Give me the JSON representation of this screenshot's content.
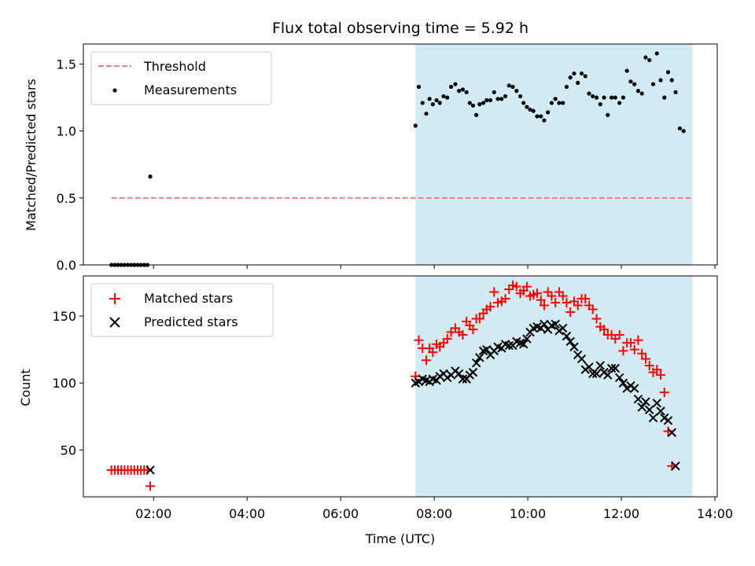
{
  "chart_data": [
    {
      "type": "scatter",
      "title": "Flux total observing time = 5.92 h",
      "xlabel": "",
      "ylabel": "Matched/Predicted stars",
      "x_unit": "hours UTC",
      "xlim": [
        0.5,
        14.05
      ],
      "ylim": [
        0,
        1.65
      ],
      "yticks": [
        0.0,
        0.5,
        1.0,
        1.5
      ],
      "ytick_labels": [
        "0.0",
        "0.5",
        "1.0",
        "1.5"
      ],
      "shaded_region": {
        "x": [
          7.6,
          13.52
        ],
        "color": "#add8e6"
      },
      "threshold": {
        "name": "Threshold",
        "y": 0.5,
        "x": [
          1.1,
          13.52
        ],
        "color": "#f08080",
        "style": "dashed"
      },
      "legend_position": "upper-left",
      "series": [
        {
          "name": "Measurements",
          "color": "#000000",
          "marker": "dot",
          "points": [
            [
              1.1,
              0
            ],
            [
              1.17,
              0
            ],
            [
              1.24,
              0
            ],
            [
              1.31,
              0
            ],
            [
              1.38,
              0
            ],
            [
              1.45,
              0
            ],
            [
              1.52,
              0
            ],
            [
              1.59,
              0
            ],
            [
              1.66,
              0
            ],
            [
              1.73,
              0
            ],
            [
              1.8,
              0
            ],
            [
              1.87,
              0
            ],
            [
              1.93,
              0.66
            ],
            [
              7.6,
              1.04
            ],
            [
              7.67,
              1.33
            ],
            [
              7.75,
              1.21
            ],
            [
              7.83,
              1.13
            ],
            [
              7.9,
              1.24
            ],
            [
              7.97,
              1.2
            ],
            [
              8.05,
              1.23
            ],
            [
              8.12,
              1.21
            ],
            [
              8.2,
              1.26
            ],
            [
              8.28,
              1.25
            ],
            [
              8.36,
              1.33
            ],
            [
              8.45,
              1.35
            ],
            [
              8.53,
              1.3
            ],
            [
              8.61,
              1.31
            ],
            [
              8.69,
              1.29
            ],
            [
              8.76,
              1.21
            ],
            [
              8.83,
              1.19
            ],
            [
              8.9,
              1.12
            ],
            [
              8.97,
              1.2
            ],
            [
              9.05,
              1.21
            ],
            [
              9.12,
              1.23
            ],
            [
              9.2,
              1.23
            ],
            [
              9.28,
              1.29
            ],
            [
              9.36,
              1.24
            ],
            [
              9.44,
              1.24
            ],
            [
              9.52,
              1.26
            ],
            [
              9.6,
              1.34
            ],
            [
              9.68,
              1.33
            ],
            [
              9.76,
              1.3
            ],
            [
              9.84,
              1.26
            ],
            [
              9.91,
              1.21
            ],
            [
              9.98,
              1.18
            ],
            [
              10.05,
              1.16
            ],
            [
              10.12,
              1.15
            ],
            [
              10.2,
              1.11
            ],
            [
              10.28,
              1.11
            ],
            [
              10.35,
              1.08
            ],
            [
              10.43,
              1.14
            ],
            [
              10.51,
              1.21
            ],
            [
              10.59,
              1.24
            ],
            [
              10.67,
              1.21
            ],
            [
              10.75,
              1.21
            ],
            [
              10.83,
              1.33
            ],
            [
              10.91,
              1.4
            ],
            [
              10.99,
              1.43
            ],
            [
              11.07,
              1.36
            ],
            [
              11.15,
              1.43
            ],
            [
              11.23,
              1.41
            ],
            [
              11.31,
              1.28
            ],
            [
              11.39,
              1.26
            ],
            [
              11.47,
              1.25
            ],
            [
              11.55,
              1.2
            ],
            [
              11.63,
              1.25
            ],
            [
              11.71,
              1.12
            ],
            [
              11.79,
              1.25
            ],
            [
              11.87,
              1.25
            ],
            [
              11.96,
              1.21
            ],
            [
              12.04,
              1.25
            ],
            [
              12.12,
              1.45
            ],
            [
              12.2,
              1.37
            ],
            [
              12.28,
              1.35
            ],
            [
              12.36,
              1.3
            ],
            [
              12.44,
              1.28
            ],
            [
              12.52,
              1.55
            ],
            [
              12.6,
              1.53
            ],
            [
              12.68,
              1.35
            ],
            [
              12.76,
              1.58
            ],
            [
              12.84,
              1.38
            ],
            [
              12.92,
              1.25
            ],
            [
              13.0,
              1.44
            ],
            [
              13.08,
              1.38
            ],
            [
              13.16,
              1.29
            ],
            [
              13.25,
              1.02
            ],
            [
              13.33,
              1.0
            ]
          ]
        }
      ]
    },
    {
      "type": "scatter",
      "title": "",
      "xlabel": "Time (UTC)",
      "ylabel": "Count",
      "x_unit": "hours UTC",
      "xlim": [
        0.5,
        14.05
      ],
      "ylim": [
        15,
        180
      ],
      "xticks": [
        2,
        4,
        6,
        8,
        10,
        12,
        14
      ],
      "xtick_labels": [
        "02:00",
        "04:00",
        "06:00",
        "08:00",
        "10:00",
        "12:00",
        "14:00"
      ],
      "yticks": [
        50,
        100,
        150
      ],
      "ytick_labels": [
        "50",
        "100",
        "150"
      ],
      "shaded_region": {
        "x": [
          7.6,
          13.52
        ],
        "color": "#add8e6"
      },
      "legend_position": "upper-left",
      "series": [
        {
          "name": "Matched stars",
          "color": "#ff0000",
          "marker": "plus",
          "points": [
            [
              1.1,
              35
            ],
            [
              1.17,
              35
            ],
            [
              1.24,
              35
            ],
            [
              1.31,
              35
            ],
            [
              1.38,
              35
            ],
            [
              1.45,
              35
            ],
            [
              1.52,
              35
            ],
            [
              1.59,
              35
            ],
            [
              1.66,
              35
            ],
            [
              1.73,
              35
            ],
            [
              1.8,
              35
            ],
            [
              1.87,
              35
            ],
            [
              1.93,
              23
            ],
            [
              7.6,
              105
            ],
            [
              7.67,
              132
            ],
            [
              7.75,
              126
            ],
            [
              7.83,
              117
            ],
            [
              7.9,
              126
            ],
            [
              7.97,
              123
            ],
            [
              8.05,
              129
            ],
            [
              8.12,
              127
            ],
            [
              8.2,
              130
            ],
            [
              8.28,
              133
            ],
            [
              8.36,
              138
            ],
            [
              8.45,
              141
            ],
            [
              8.53,
              138
            ],
            [
              8.61,
              136
            ],
            [
              8.69,
              146
            ],
            [
              8.76,
              143
            ],
            [
              8.83,
              140
            ],
            [
              8.9,
              148
            ],
            [
              8.97,
              148
            ],
            [
              9.05,
              152
            ],
            [
              9.12,
              155
            ],
            [
              9.2,
              157
            ],
            [
              9.28,
              168
            ],
            [
              9.36,
              160
            ],
            [
              9.44,
              161
            ],
            [
              9.52,
              163
            ],
            [
              9.6,
              170
            ],
            [
              9.68,
              173
            ],
            [
              9.76,
              172
            ],
            [
              9.84,
              167
            ],
            [
              9.91,
              169
            ],
            [
              9.98,
              172
            ],
            [
              10.05,
              165
            ],
            [
              10.12,
              166
            ],
            [
              10.2,
              167
            ],
            [
              10.28,
              162
            ],
            [
              10.35,
              158
            ],
            [
              10.43,
              168
            ],
            [
              10.51,
              165
            ],
            [
              10.59,
              160
            ],
            [
              10.67,
              168
            ],
            [
              10.75,
              165
            ],
            [
              10.83,
              160
            ],
            [
              10.91,
              153
            ],
            [
              10.99,
              161
            ],
            [
              11.07,
              158
            ],
            [
              11.15,
              163
            ],
            [
              11.23,
              163
            ],
            [
              11.31,
              158
            ],
            [
              11.39,
              155
            ],
            [
              11.47,
              148
            ],
            [
              11.55,
              142
            ],
            [
              11.63,
              140
            ],
            [
              11.71,
              136
            ],
            [
              11.79,
              136
            ],
            [
              11.87,
              133
            ],
            [
              11.96,
              136
            ],
            [
              12.04,
              124
            ],
            [
              12.12,
              130
            ],
            [
              12.2,
              130
            ],
            [
              12.28,
              125
            ],
            [
              12.36,
              132
            ],
            [
              12.44,
              122
            ],
            [
              12.52,
              118
            ],
            [
              12.6,
              113
            ],
            [
              12.68,
              108
            ],
            [
              12.76,
              110
            ],
            [
              12.84,
              106
            ],
            [
              12.92,
              93
            ],
            [
              13.0,
              64
            ],
            [
              13.08,
              38
            ]
          ]
        },
        {
          "name": "Predicted stars",
          "color": "#000000",
          "marker": "x",
          "points": [
            [
              1.93,
              35
            ],
            [
              7.6,
              100
            ],
            [
              7.67,
              101
            ],
            [
              7.75,
              103
            ],
            [
              7.83,
              102
            ],
            [
              7.9,
              101
            ],
            [
              7.97,
              103
            ],
            [
              8.05,
              102
            ],
            [
              8.12,
              105
            ],
            [
              8.2,
              107
            ],
            [
              8.28,
              104
            ],
            [
              8.36,
              106
            ],
            [
              8.45,
              109
            ],
            [
              8.53,
              107
            ],
            [
              8.61,
              103
            ],
            [
              8.69,
              103
            ],
            [
              8.76,
              106
            ],
            [
              8.83,
              108
            ],
            [
              8.9,
              115
            ],
            [
              8.97,
              119
            ],
            [
              9.05,
              124
            ],
            [
              9.12,
              125
            ],
            [
              9.2,
              121
            ],
            [
              9.28,
              124
            ],
            [
              9.36,
              127
            ],
            [
              9.44,
              126
            ],
            [
              9.52,
              129
            ],
            [
              9.6,
              128
            ],
            [
              9.68,
              128
            ],
            [
              9.76,
              131
            ],
            [
              9.84,
              130
            ],
            [
              9.91,
              129
            ],
            [
              9.98,
              133
            ],
            [
              10.05,
              138
            ],
            [
              10.12,
              141
            ],
            [
              10.2,
              142
            ],
            [
              10.28,
              141
            ],
            [
              10.35,
              144
            ],
            [
              10.43,
              140
            ],
            [
              10.51,
              143
            ],
            [
              10.59,
              144
            ],
            [
              10.67,
              139
            ],
            [
              10.75,
              141
            ],
            [
              10.83,
              135
            ],
            [
              10.91,
              131
            ],
            [
              10.99,
              127
            ],
            [
              11.07,
              121
            ],
            [
              11.15,
              118
            ],
            [
              11.23,
              110
            ],
            [
              11.31,
              112
            ],
            [
              11.39,
              107
            ],
            [
              11.47,
              107
            ],
            [
              11.55,
              113
            ],
            [
              11.63,
              108
            ],
            [
              11.71,
              106
            ],
            [
              11.79,
              111
            ],
            [
              11.87,
              111
            ],
            [
              11.96,
              104
            ],
            [
              12.04,
              100
            ],
            [
              12.12,
              96
            ],
            [
              12.2,
              98
            ],
            [
              12.28,
              96
            ],
            [
              12.36,
              88
            ],
            [
              12.44,
              82
            ],
            [
              12.52,
              86
            ],
            [
              12.6,
              80
            ],
            [
              12.68,
              74
            ],
            [
              12.76,
              85
            ],
            [
              12.84,
              79
            ],
            [
              12.92,
              74
            ],
            [
              13.0,
              72
            ],
            [
              13.08,
              63
            ],
            [
              13.16,
              38
            ]
          ]
        }
      ]
    }
  ]
}
